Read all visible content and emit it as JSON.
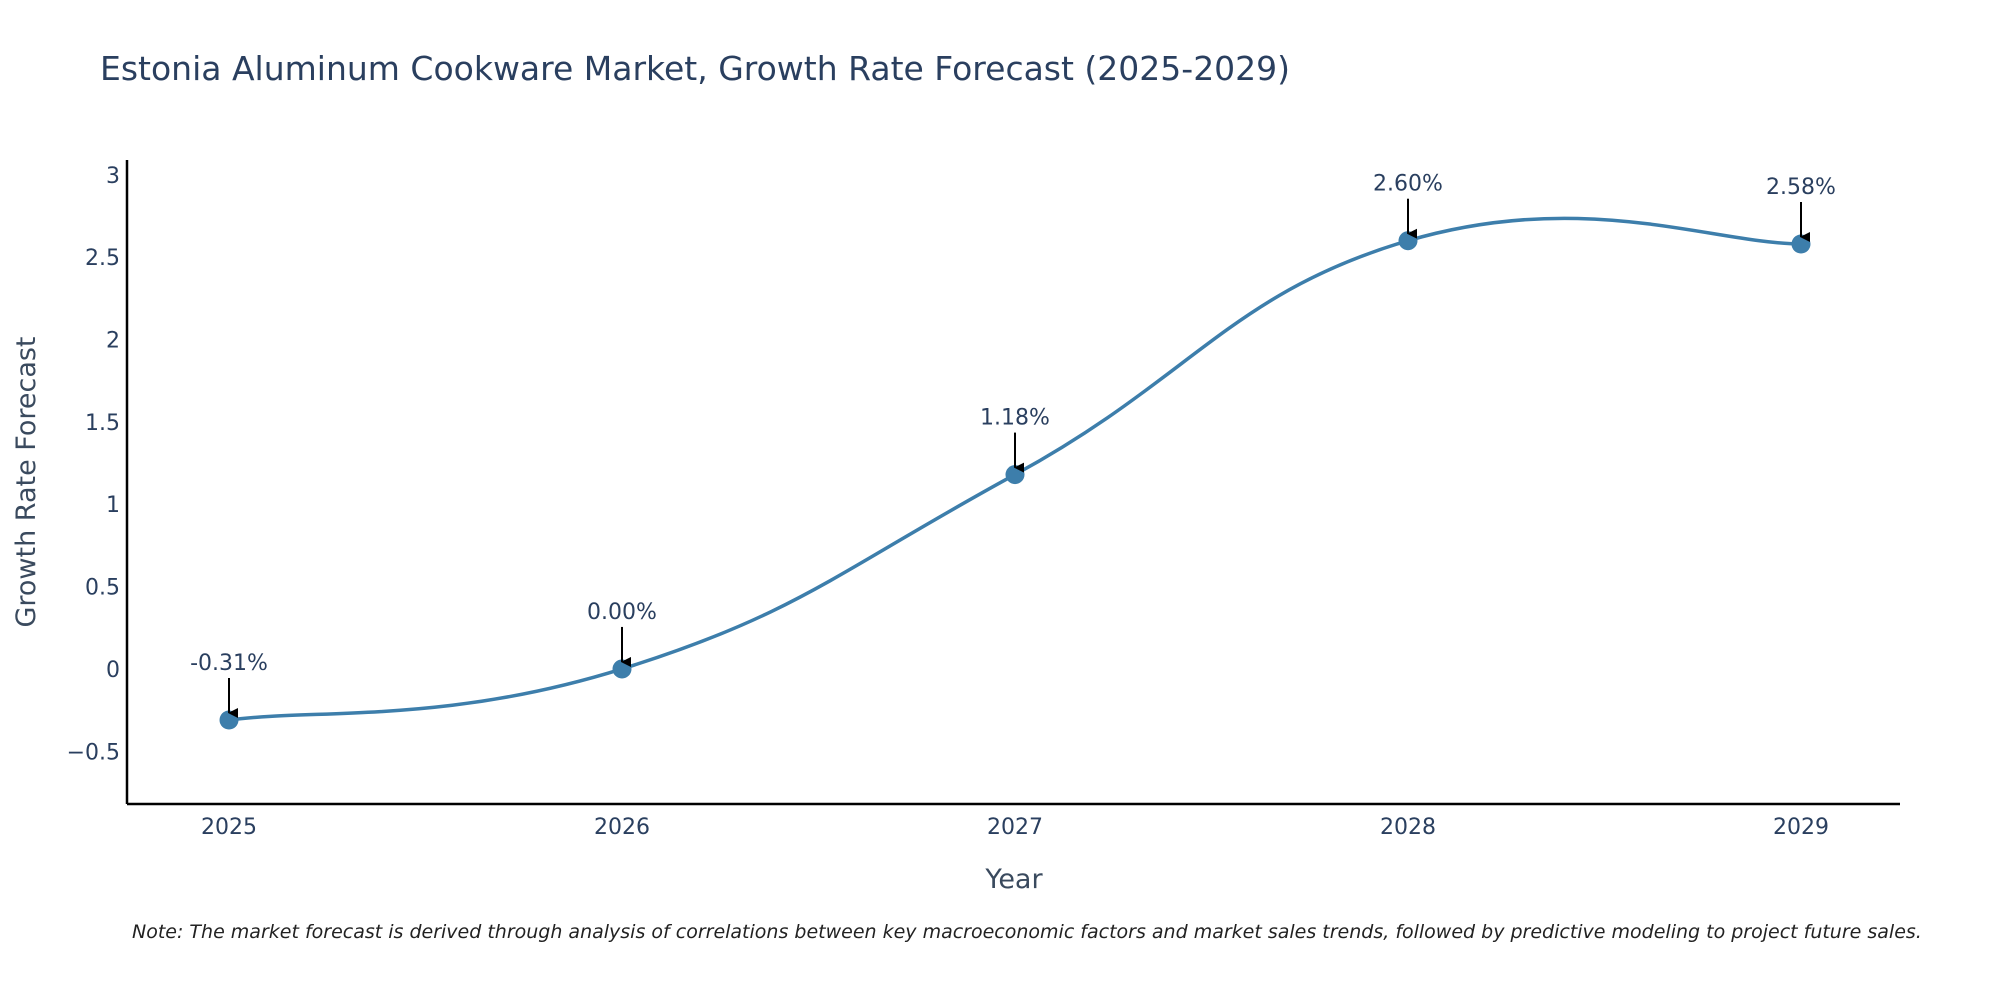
{
  "chart_data": {
    "type": "line",
    "title": "Estonia Aluminum Cookware Market, Growth Rate Forecast (2025-2029)",
    "xlabel": "Year",
    "ylabel": "Growth Rate Forecast",
    "x": [
      "2025",
      "2026",
      "2027",
      "2028",
      "2029"
    ],
    "values": [
      -0.31,
      0.0,
      1.18,
      2.6,
      2.58
    ],
    "data_labels": [
      "-0.31%",
      "0.00%",
      "1.18%",
      "2.60%",
      "2.58%"
    ],
    "y_ticks": [
      -0.5,
      0,
      0.5,
      1,
      1.5,
      2,
      2.5,
      3
    ],
    "y_tick_labels": [
      "−0.5",
      "0",
      "0.5",
      "1",
      "1.5",
      "2",
      "2.5",
      "3"
    ],
    "ylim": [
      -0.82,
      3.09
    ],
    "grid": false,
    "line_smoothing": "spline",
    "annotation_arrows": true
  },
  "note": "Note: The market forecast is derived through analysis of correlations between key macroeconomic factors and market sales trends, followed by predictive modeling to project future sales.",
  "colors": {
    "series": "#3d7eab",
    "axis": "#000000",
    "text": "#2a3f5f",
    "background": "#ffffff"
  }
}
